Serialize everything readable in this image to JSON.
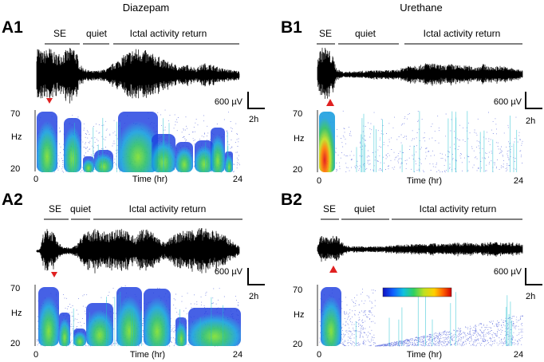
{
  "columns": [
    {
      "key": "A",
      "title": "Diazepam"
    },
    {
      "key": "B",
      "title": "Urethane"
    }
  ],
  "panels": [
    {
      "id": "A1",
      "label": "A1",
      "column": "A",
      "row": 1,
      "phases": [
        "SE",
        "quiet",
        "Ictal activity return"
      ],
      "ymax": "70",
      "ymin": "20",
      "yunit": "Hz",
      "xstart": "0",
      "xend": "24",
      "xlabel": "Time (hr)",
      "scale_amp": "600 µV",
      "scale_time": "2h"
    },
    {
      "id": "A2",
      "label": "A2",
      "column": "A",
      "row": 2,
      "phases": [
        "SE",
        "quiet",
        "Ictal activity return"
      ],
      "ymax": "70",
      "ymin": "20",
      "yunit": "Hz",
      "xstart": "0",
      "xend": "24",
      "xlabel": "Time (hr)",
      "scale_amp": "600 µV",
      "scale_time": "2h"
    },
    {
      "id": "B1",
      "label": "B1",
      "column": "B",
      "row": 1,
      "phases": [
        "SE",
        "quiet",
        "Ictal activity return"
      ],
      "ymax": "70",
      "ymin": "20",
      "yunit": "Hz",
      "xstart": "0",
      "xend": "24",
      "xlabel": "Time (hr)",
      "scale_amp": "600 µV",
      "scale_time": "2h"
    },
    {
      "id": "B2",
      "label": "B2",
      "column": "B",
      "row": 2,
      "phases": [
        "SE",
        "quiet",
        "Ictal activity return"
      ],
      "ymax": "70",
      "ymin": "20",
      "yunit": "Hz",
      "xstart": "0",
      "xend": "24",
      "xlabel": "Time (hr)",
      "scale_amp": "600 µV",
      "scale_time": "2h"
    }
  ],
  "colorbar": {
    "colors": [
      "#1010c0",
      "#1060ff",
      "#10c0e0",
      "#30d060",
      "#c0e020",
      "#ffd000",
      "#ff6000",
      "#d00000"
    ]
  },
  "style": {
    "trace_color": "#000000",
    "marker_color": "#e02020",
    "spectro_low": "#1a2fd0",
    "spectro_mid": "#20c0d0",
    "spectro_high": "#40d040",
    "spectro_peak": "#e02010"
  }
}
